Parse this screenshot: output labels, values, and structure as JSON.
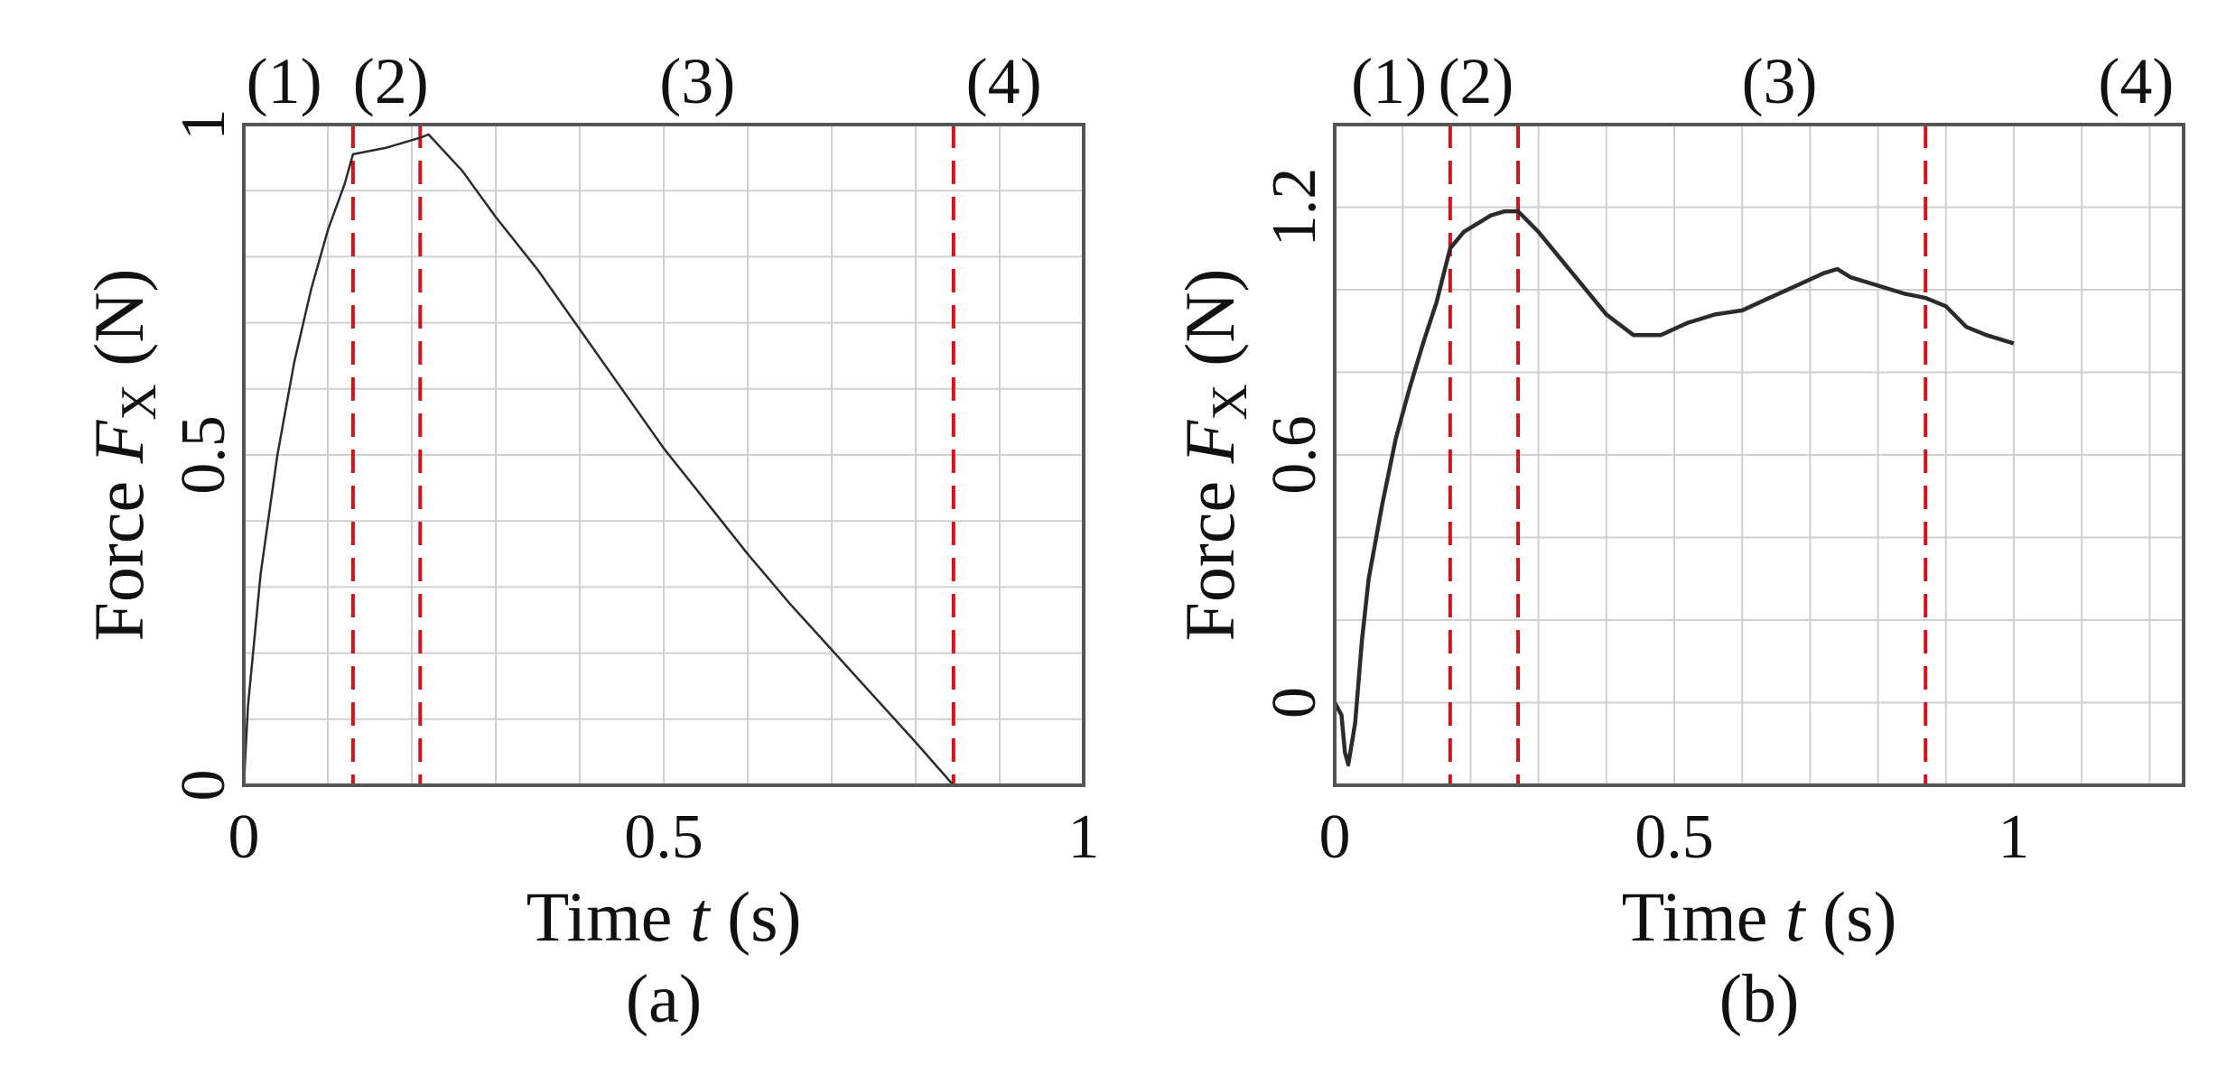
{
  "chart_data": [
    {
      "type": "line",
      "caption": "(a)",
      "xlabel_main": "Time ",
      "xlabel_var": "t",
      "xlabel_unit": " (s)",
      "ylabel_main": "Force ",
      "ylabel_var": "F",
      "ylabel_sub": "X",
      "ylabel_unit": " (N)",
      "xlim": [
        0,
        1
      ],
      "ylim": [
        0,
        1
      ],
      "xticks": [
        0,
        0.5,
        1
      ],
      "xtick_labels": [
        "0",
        "0.5",
        "1"
      ],
      "yticks": [
        0,
        0.5,
        1
      ],
      "ytick_labels": [
        "0",
        "0.5",
        "1"
      ],
      "grid": true,
      "grid_x": [
        0.1,
        0.2,
        0.3,
        0.4,
        0.5,
        0.6,
        0.7,
        0.8,
        0.9
      ],
      "grid_y": [
        0.1,
        0.2,
        0.3,
        0.4,
        0.5,
        0.6,
        0.7,
        0.8,
        0.9
      ],
      "phase_labels": [
        {
          "text": "(1)",
          "x": 0.048
        },
        {
          "text": "(2)",
          "x": 0.175
        },
        {
          "text": "(3)",
          "x": 0.54
        },
        {
          "text": "(4)",
          "x": 0.905
        }
      ],
      "phase_boundaries": [
        0.13,
        0.21,
        0.845
      ],
      "series": [
        {
          "x": [
            0.0,
            0.005,
            0.02,
            0.04,
            0.06,
            0.08,
            0.1,
            0.12,
            0.13,
            0.17,
            0.21,
            0.22,
            0.26,
            0.3,
            0.35,
            0.4,
            0.45,
            0.5,
            0.55,
            0.6,
            0.65,
            0.7,
            0.75,
            0.8,
            0.845
          ],
          "y": [
            0.0,
            0.12,
            0.32,
            0.5,
            0.64,
            0.75,
            0.84,
            0.91,
            0.955,
            0.965,
            0.98,
            0.985,
            0.93,
            0.86,
            0.78,
            0.69,
            0.6,
            0.51,
            0.43,
            0.35,
            0.275,
            0.205,
            0.135,
            0.065,
            0.0
          ],
          "stroke_width": 2.5
        }
      ]
    },
    {
      "type": "line",
      "caption": "(b)",
      "xlabel_main": "Time ",
      "xlabel_var": "t",
      "xlabel_unit": " (s)",
      "ylabel_main": "Force ",
      "ylabel_var": "F",
      "ylabel_sub": "X",
      "ylabel_unit": " (N)",
      "xlim": [
        0,
        1.25
      ],
      "ylim": [
        -0.2,
        1.4
      ],
      "xticks": [
        0,
        0.5,
        1
      ],
      "xtick_labels": [
        "0",
        "0.5",
        "1"
      ],
      "yticks": [
        0,
        0.6,
        1.2
      ],
      "ytick_labels": [
        "0",
        "0.6",
        "1.2"
      ],
      "grid": true,
      "grid_x": [
        0.1,
        0.2,
        0.3,
        0.4,
        0.5,
        0.6,
        0.7,
        0.8,
        0.9,
        1.0,
        1.1,
        1.2
      ],
      "grid_y": [
        0.0,
        0.2,
        0.4,
        0.6,
        0.8,
        1.0,
        1.2
      ],
      "phase_labels": [
        {
          "text": "(1)",
          "x": 0.08
        },
        {
          "text": "(2)",
          "x": 0.208
        },
        {
          "text": "(3)",
          "x": 0.655
        },
        {
          "text": "(4)",
          "x": 1.18
        }
      ],
      "phase_boundaries": [
        0.17,
        0.27,
        0.87
      ],
      "series": [
        {
          "x": [
            0.0,
            0.01,
            0.015,
            0.02,
            0.03,
            0.04,
            0.05,
            0.07,
            0.09,
            0.11,
            0.13,
            0.15,
            0.17,
            0.19,
            0.21,
            0.23,
            0.25,
            0.27,
            0.3,
            0.33,
            0.36,
            0.4,
            0.44,
            0.48,
            0.52,
            0.56,
            0.6,
            0.64,
            0.68,
            0.72,
            0.74,
            0.76,
            0.8,
            0.84,
            0.87,
            0.9,
            0.93,
            0.96,
            1.0
          ],
          "y": [
            0.0,
            -0.03,
            -0.12,
            -0.15,
            -0.05,
            0.15,
            0.3,
            0.48,
            0.64,
            0.76,
            0.87,
            0.97,
            1.1,
            1.14,
            1.16,
            1.18,
            1.19,
            1.19,
            1.14,
            1.08,
            1.02,
            0.94,
            0.89,
            0.89,
            0.92,
            0.94,
            0.95,
            0.98,
            1.01,
            1.04,
            1.05,
            1.03,
            1.01,
            0.99,
            0.98,
            0.96,
            0.91,
            0.89,
            0.87
          ],
          "stroke_width": 4.5
        }
      ]
    }
  ]
}
